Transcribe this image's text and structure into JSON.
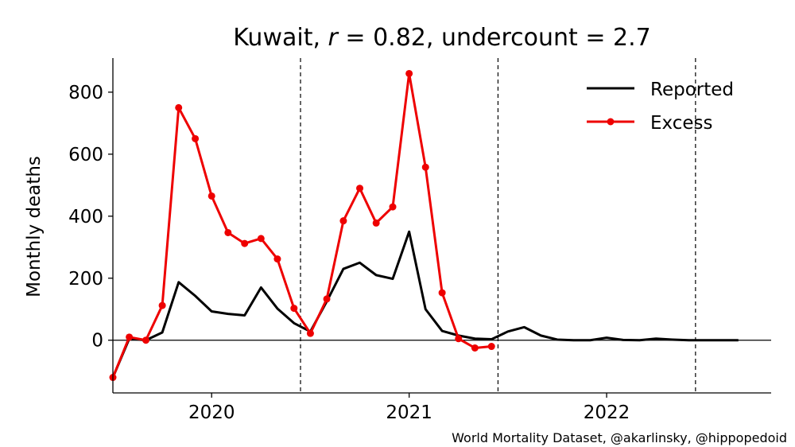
{
  "chart_data": {
    "type": "line",
    "title": {
      "prefix": "Kuwait, ",
      "r_symbol": "r",
      "r_text": " = 0.82, undercount = 2.7"
    },
    "xlabel": "",
    "ylabel": "Monthly deaths",
    "credit": "World Mortality Dataset, @akarlinsky, @hippopedoid",
    "xlim": [
      2019.5,
      2022.833
    ],
    "ylim": [
      -170,
      910
    ],
    "x_ticks": [
      {
        "value": 2020.0,
        "label": "2020"
      },
      {
        "value": 2021.0,
        "label": "2021"
      },
      {
        "value": 2022.0,
        "label": "2022"
      }
    ],
    "y_ticks": [
      {
        "value": 0,
        "label": "0"
      },
      {
        "value": 200,
        "label": "200"
      },
      {
        "value": 400,
        "label": "400"
      },
      {
        "value": 600,
        "label": "600"
      },
      {
        "value": 800,
        "label": "800"
      }
    ],
    "vlines": [
      2020.45,
      2021.45,
      2022.45
    ],
    "zero_line": true,
    "grid": false,
    "legend": {
      "position": "top-right"
    },
    "series": [
      {
        "name": "Reported",
        "color": "#000000",
        "marker": "none",
        "points": [
          [
            2019.5,
            -120
          ],
          [
            2019.583,
            5
          ],
          [
            2019.667,
            0
          ],
          [
            2019.75,
            25
          ],
          [
            2019.833,
            187
          ],
          [
            2019.917,
            143
          ],
          [
            2020.0,
            93
          ],
          [
            2020.083,
            85
          ],
          [
            2020.167,
            80
          ],
          [
            2020.25,
            170
          ],
          [
            2020.333,
            102
          ],
          [
            2020.417,
            55
          ],
          [
            2020.5,
            28
          ],
          [
            2020.583,
            125
          ],
          [
            2020.667,
            230
          ],
          [
            2020.75,
            250
          ],
          [
            2020.833,
            210
          ],
          [
            2020.917,
            198
          ],
          [
            2021.0,
            350
          ],
          [
            2021.083,
            100
          ],
          [
            2021.167,
            30
          ],
          [
            2021.25,
            15
          ],
          [
            2021.333,
            5
          ],
          [
            2021.417,
            3
          ],
          [
            2021.5,
            28
          ],
          [
            2021.583,
            42
          ],
          [
            2021.667,
            15
          ],
          [
            2021.75,
            2
          ],
          [
            2021.833,
            0
          ],
          [
            2021.917,
            0
          ],
          [
            2022.0,
            8
          ],
          [
            2022.083,
            1
          ],
          [
            2022.167,
            0
          ],
          [
            2022.25,
            5
          ],
          [
            2022.333,
            2
          ],
          [
            2022.417,
            0
          ],
          [
            2022.5,
            0
          ],
          [
            2022.583,
            0
          ],
          [
            2022.667,
            0
          ]
        ]
      },
      {
        "name": "Excess",
        "color": "#ee0000",
        "marker": "circle",
        "points": [
          [
            2019.5,
            -120
          ],
          [
            2019.583,
            10
          ],
          [
            2019.667,
            0
          ],
          [
            2019.75,
            112
          ],
          [
            2019.833,
            750
          ],
          [
            2019.917,
            650
          ],
          [
            2020.0,
            465
          ],
          [
            2020.083,
            347
          ],
          [
            2020.167,
            312
          ],
          [
            2020.25,
            328
          ],
          [
            2020.333,
            262
          ],
          [
            2020.417,
            103
          ],
          [
            2020.5,
            22
          ],
          [
            2020.583,
            133
          ],
          [
            2020.667,
            385
          ],
          [
            2020.75,
            490
          ],
          [
            2020.833,
            378
          ],
          [
            2020.917,
            430
          ],
          [
            2021.0,
            860
          ],
          [
            2021.083,
            558
          ],
          [
            2021.167,
            153
          ],
          [
            2021.25,
            5
          ],
          [
            2021.333,
            -25
          ],
          [
            2021.417,
            -20
          ]
        ]
      }
    ]
  }
}
